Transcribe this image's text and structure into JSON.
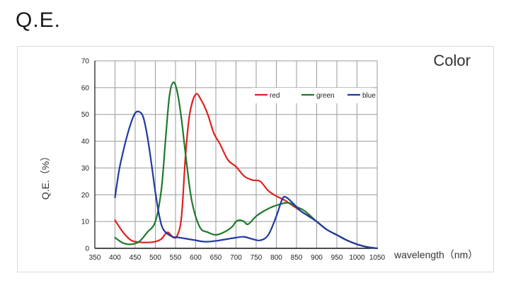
{
  "page": {
    "title": "Q.E."
  },
  "chart_data": {
    "type": "line",
    "annotation": "Color",
    "xlabel": "wavelength（nm）",
    "ylabel": "Q.E.（%）",
    "xlim": [
      350,
      1050
    ],
    "ylim": [
      0,
      70
    ],
    "x_ticks": [
      350,
      400,
      450,
      500,
      550,
      600,
      650,
      700,
      750,
      800,
      850,
      900,
      950,
      1000,
      1050
    ],
    "y_ticks": [
      0,
      10,
      20,
      30,
      40,
      50,
      60,
      70
    ],
    "grid": true,
    "legend": "top-right",
    "series": [
      {
        "name": "red",
        "color": "#e02020",
        "x": [
          400,
          420,
          440,
          460,
          480,
          500,
          515,
          530,
          545,
          555,
          565,
          575,
          585,
          600,
          615,
          630,
          645,
          660,
          680,
          700,
          720,
          740,
          760,
          780,
          800,
          820,
          840,
          860,
          880,
          900,
          925,
          950,
          975,
          1000,
          1025,
          1050
        ],
        "y": [
          10.5,
          6,
          3,
          2.3,
          2.2,
          2.5,
          3.5,
          6,
          4,
          5,
          12,
          35,
          50,
          57.5,
          55,
          50,
          43,
          39,
          33,
          30.5,
          27,
          25.5,
          25,
          21.5,
          19.5,
          18,
          16,
          14,
          12,
          10,
          7,
          5,
          3,
          1.5,
          0.5,
          0
        ]
      },
      {
        "name": "green",
        "color": "#1e7a2c",
        "x": [
          400,
          420,
          440,
          460,
          480,
          500,
          515,
          525,
          535,
          545,
          555,
          565,
          575,
          590,
          610,
          630,
          650,
          670,
          690,
          700,
          710,
          720,
          730,
          750,
          770,
          790,
          810,
          830,
          850,
          870,
          900,
          925,
          950,
          975,
          1000,
          1025,
          1050
        ],
        "y": [
          4,
          2,
          1.5,
          2.5,
          6,
          10,
          22,
          40,
          57,
          62,
          58,
          48,
          35,
          18,
          8,
          6,
          5,
          6,
          8,
          10,
          10.5,
          10,
          9,
          12,
          14,
          15.5,
          16.5,
          17,
          15.5,
          14,
          10,
          7,
          5,
          3,
          1.5,
          0.5,
          0
        ]
      },
      {
        "name": "blue",
        "color": "#1f3aa0",
        "x": [
          400,
          410,
          420,
          430,
          440,
          450,
          460,
          470,
          480,
          490,
          500,
          510,
          520,
          540,
          560,
          580,
          600,
          620,
          640,
          660,
          680,
          700,
          720,
          740,
          760,
          780,
          800,
          815,
          825,
          840,
          860,
          880,
          900,
          925,
          950,
          975,
          1000,
          1025,
          1050
        ],
        "y": [
          19,
          29,
          36,
          42,
          47,
          50.5,
          51,
          49,
          42,
          32,
          21,
          12,
          7,
          4.5,
          4,
          3.5,
          3,
          2.5,
          2.6,
          3,
          3.5,
          4,
          4.3,
          3.5,
          3,
          5,
          12,
          18.5,
          19,
          17,
          14,
          12,
          10,
          7,
          5,
          3,
          1.5,
          0.5,
          0
        ]
      }
    ]
  }
}
